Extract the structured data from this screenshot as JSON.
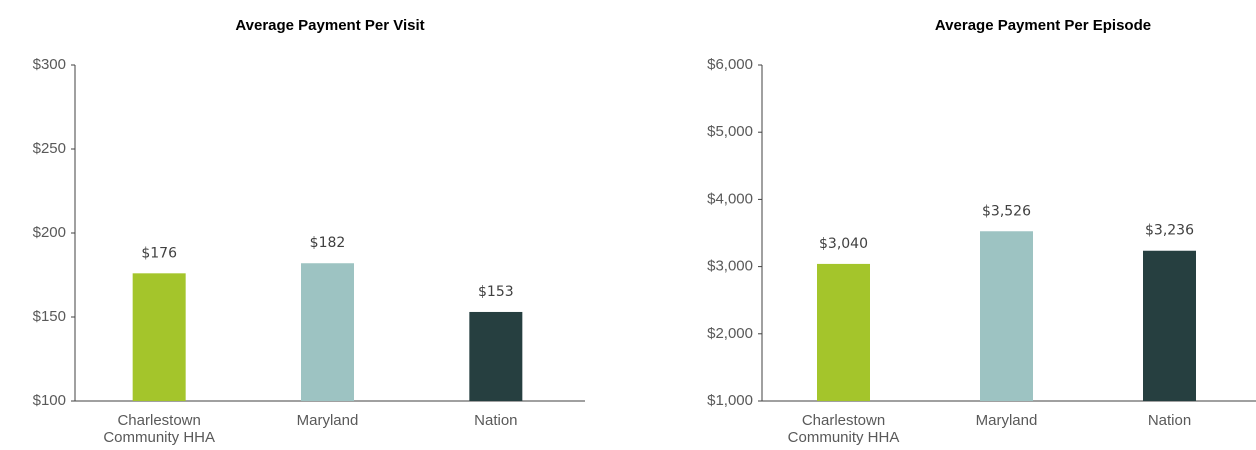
{
  "chart_data": [
    {
      "type": "bar",
      "title": "Average Payment Per Visit",
      "categories": [
        "Charlestown Community HHA",
        "Maryland",
        "Nation"
      ],
      "values": [
        176,
        182,
        153
      ],
      "value_labels": [
        "$176",
        "$182",
        "$153"
      ],
      "colors": [
        "#a4c52b",
        "#9dc3c2",
        "#263f40"
      ],
      "ylim": [
        100,
        300
      ],
      "yticks": [
        {
          "value": 100,
          "label": "$100"
        },
        {
          "value": 150,
          "label": "$150"
        },
        {
          "value": 200,
          "label": "$200"
        },
        {
          "value": 250,
          "label": "$250"
        },
        {
          "value": 300,
          "label": "$300"
        }
      ]
    },
    {
      "type": "bar",
      "title": "Average Payment Per Episode",
      "categories": [
        "Charlestown Community HHA",
        "Maryland",
        "Nation"
      ],
      "values": [
        3040,
        3526,
        3236
      ],
      "value_labels": [
        "$3,040",
        "$3,526",
        "$3,236"
      ],
      "colors": [
        "#a4c52b",
        "#9dc3c2",
        "#263f40"
      ],
      "ylim": [
        1000,
        6000
      ],
      "yticks": [
        {
          "value": 1000,
          "label": "$1,000"
        },
        {
          "value": 2000,
          "label": "$2,000"
        },
        {
          "value": 3000,
          "label": "$3,000"
        },
        {
          "value": 4000,
          "label": "$4,000"
        },
        {
          "value": 5000,
          "label": "$5,000"
        },
        {
          "value": 6000,
          "label": "$6,000"
        }
      ]
    }
  ]
}
